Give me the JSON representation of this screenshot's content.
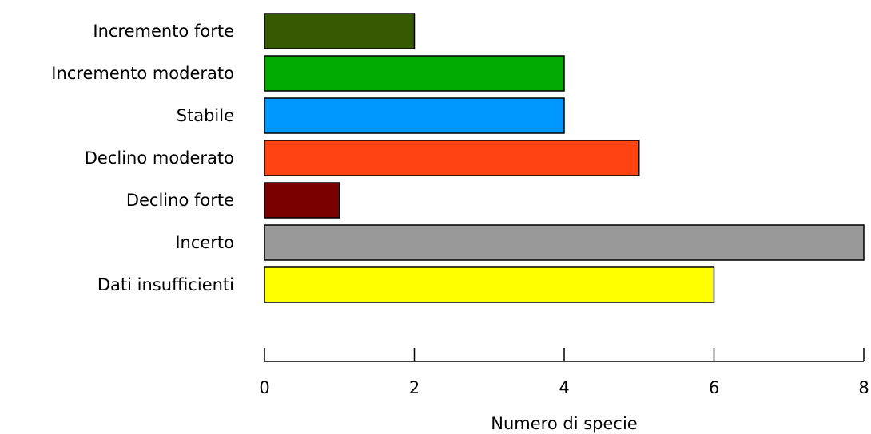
{
  "chart_data": {
    "type": "bar",
    "orientation": "horizontal",
    "categories": [
      "Incremento forte",
      "Incremento moderato",
      "Stabile",
      "Declino moderato",
      "Declino forte",
      "Incerto",
      "Dati insufficienti"
    ],
    "values": [
      2,
      4,
      4,
      5,
      1,
      8,
      6
    ],
    "colors": [
      "#375a00",
      "#00aa00",
      "#0099ff",
      "#ff4411",
      "#7a0000",
      "#999999",
      "#ffff00"
    ],
    "xlabel": "Numero di specie",
    "ylabel": "",
    "title": "",
    "xlim": [
      0,
      8
    ],
    "xticks": [
      "0",
      "2",
      "4",
      "6",
      "8"
    ],
    "grid": false,
    "legend": "none"
  }
}
